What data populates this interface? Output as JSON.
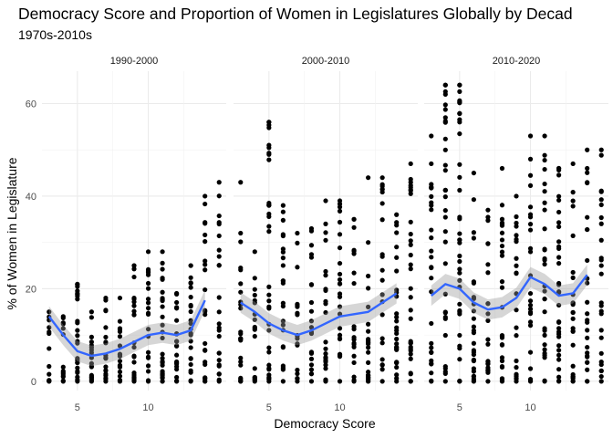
{
  "chart_data": {
    "type": "scatter",
    "title": "Democracy Score and Proportion of Women in Legislatures Globally by Decad",
    "subtitle": "1970s-2010s",
    "xlabel": "Democracy Score",
    "ylabel": "% of Women in Legislature",
    "x_ticks": [
      5,
      10
    ],
    "y_ticks": [
      0,
      20,
      40,
      60
    ],
    "xlim": [
      2.5,
      15.5
    ],
    "ylim": [
      -2,
      67
    ],
    "grid": true,
    "smooth_color": "#3366FF",
    "point_color": "#000000",
    "panels": [
      {
        "label": "1990-2000",
        "x_levels": [
          1,
          2,
          3,
          4,
          5,
          6,
          7,
          8,
          9,
          10,
          11,
          12,
          13,
          14,
          15
        ],
        "y_max": [
          28,
          22,
          15,
          14,
          21,
          15,
          18,
          18,
          25,
          28,
          28,
          19,
          25,
          40,
          43
        ],
        "smooth": [
          [
            3,
            14
          ],
          [
            4,
            10
          ],
          [
            5,
            6.5
          ],
          [
            6,
            5.5
          ],
          [
            7,
            6
          ],
          [
            8,
            7
          ],
          [
            9,
            8.5
          ],
          [
            10,
            10
          ],
          [
            11,
            10.5
          ],
          [
            12,
            10
          ],
          [
            13,
            11
          ],
          [
            14,
            17.5
          ]
        ],
        "outliers": [
          [
            9,
            25
          ],
          [
            10,
            23
          ],
          [
            11,
            22
          ],
          [
            13,
            25
          ]
        ]
      },
      {
        "label": "2000-2010",
        "x_levels": [
          1,
          2,
          3,
          4,
          5,
          6,
          7,
          8,
          9,
          10,
          11,
          12,
          13,
          14,
          15
        ],
        "y_max": [
          36,
          43,
          32,
          28,
          56,
          38,
          32,
          33,
          34,
          39,
          35,
          30,
          44,
          36,
          47
        ],
        "smooth": [
          [
            3,
            17
          ],
          [
            4,
            15
          ],
          [
            5,
            12.5
          ],
          [
            6,
            11
          ],
          [
            7,
            10
          ],
          [
            8,
            11
          ],
          [
            9,
            12.5
          ],
          [
            10,
            14
          ],
          [
            11,
            14.5
          ],
          [
            12,
            15
          ],
          [
            13,
            17
          ],
          [
            14,
            19
          ]
        ],
        "outliers": [
          [
            3,
            43
          ],
          [
            5,
            56
          ],
          [
            5,
            49
          ],
          [
            5,
            38
          ],
          [
            9,
            39
          ],
          [
            11,
            35
          ],
          [
            12,
            44
          ]
        ]
      },
      {
        "label": "2010-2020",
        "x_levels": [
          1,
          2,
          3,
          4,
          5,
          6,
          7,
          8,
          9,
          10,
          11,
          12,
          13,
          14,
          15
        ],
        "y_max": [
          31,
          53,
          47,
          64,
          64,
          45,
          37,
          46,
          40,
          48,
          53,
          46,
          47,
          46,
          50
        ],
        "smooth": [
          [
            3,
            18.5
          ],
          [
            4,
            21
          ],
          [
            5,
            20
          ],
          [
            6,
            17
          ],
          [
            7,
            15.5
          ],
          [
            8,
            16
          ],
          [
            9,
            18
          ],
          [
            10,
            22.5
          ],
          [
            11,
            21
          ],
          [
            12,
            18.5
          ],
          [
            13,
            19
          ],
          [
            14,
            23
          ]
        ],
        "outliers": [
          [
            3,
            53
          ],
          [
            4,
            64
          ],
          [
            4,
            62
          ],
          [
            5,
            64
          ],
          [
            5,
            56
          ],
          [
            10,
            53
          ],
          [
            12,
            46
          ],
          [
            14,
            50
          ]
        ]
      }
    ]
  }
}
